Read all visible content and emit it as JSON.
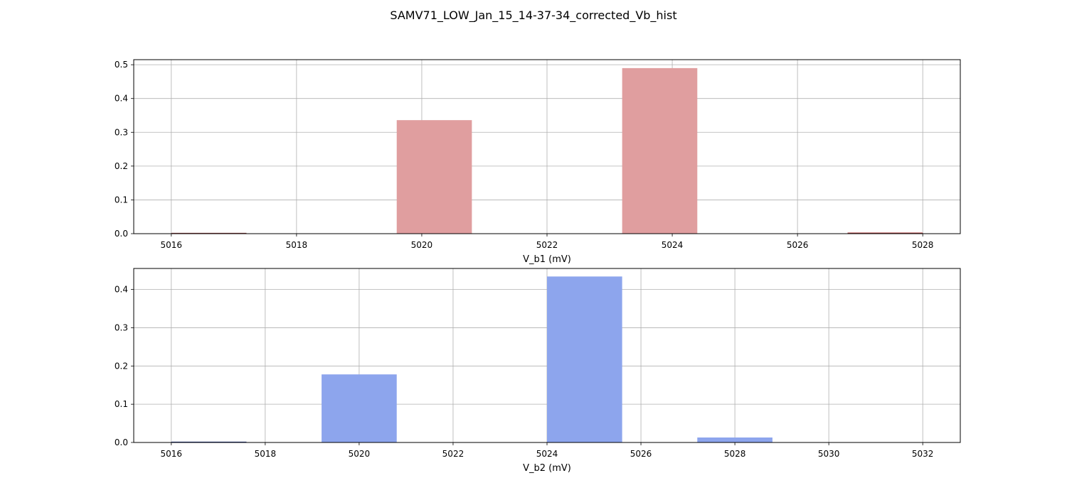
{
  "suptitle": "SAMV71_LOW_Jan_15_14-37-34_corrected_Vb_hist",
  "chart_data": [
    {
      "type": "bar",
      "subtype": "histogram",
      "xlabel": "V_b1 (mV)",
      "ylabel": "",
      "color": "#e09e9f",
      "edge_color": "#8b3a3a",
      "xlim": [
        5015.4,
        5028.6
      ],
      "ylim": [
        0,
        0.515
      ],
      "xticks": [
        5016,
        5018,
        5020,
        5022,
        5024,
        5026,
        5028
      ],
      "yticks": [
        0.0,
        0.1,
        0.2,
        0.3,
        0.4,
        0.5
      ],
      "grid": true,
      "bins": [
        {
          "x0": 5016.0,
          "x1": 5017.2,
          "value": 0.0008
        },
        {
          "x0": 5019.6,
          "x1": 5020.8,
          "value": 0.336
        },
        {
          "x0": 5023.2,
          "x1": 5024.4,
          "value": 0.49
        },
        {
          "x0": 5026.8,
          "x1": 5028.0,
          "value": 0.004
        }
      ]
    },
    {
      "type": "bar",
      "subtype": "histogram",
      "xlabel": "V_b2 (mV)",
      "ylabel": "",
      "color": "#8da5ed",
      "edge_color": "#2a3f8a",
      "xlim": [
        5015.2,
        5032.8
      ],
      "ylim": [
        0,
        0.455
      ],
      "xticks": [
        5016,
        5018,
        5020,
        5022,
        5024,
        5026,
        5028,
        5030,
        5032
      ],
      "yticks": [
        0.0,
        0.1,
        0.2,
        0.3,
        0.4
      ],
      "grid": true,
      "bins": [
        {
          "x0": 5016.0,
          "x1": 5017.6,
          "value": 0.001
        },
        {
          "x0": 5019.2,
          "x1": 5020.8,
          "value": 0.178
        },
        {
          "x0": 5024.0,
          "x1": 5025.6,
          "value": 0.434
        },
        {
          "x0": 5027.2,
          "x1": 5028.8,
          "value": 0.013
        }
      ]
    }
  ]
}
